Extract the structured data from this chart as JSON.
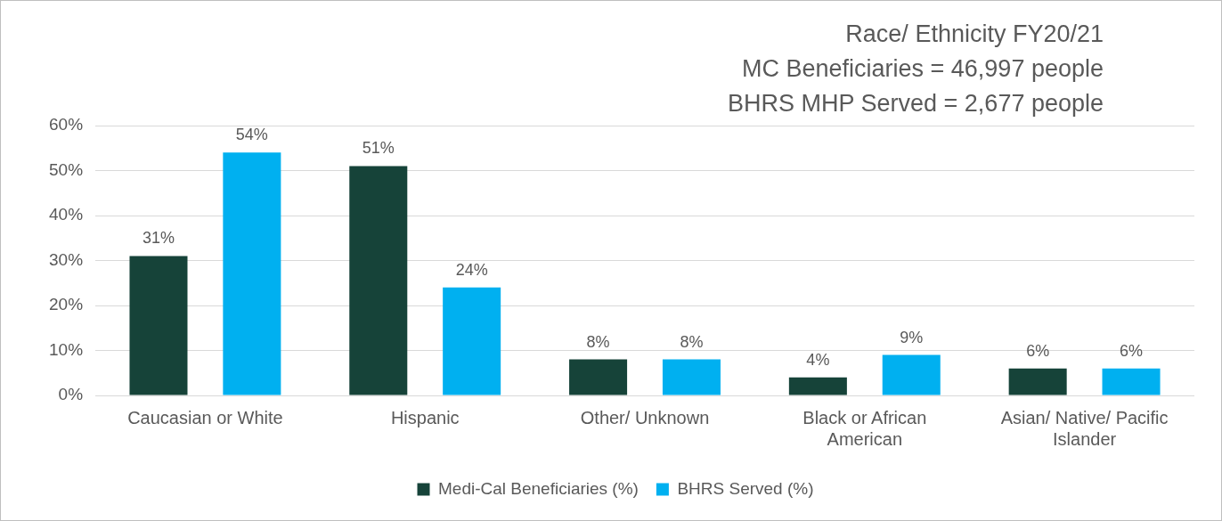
{
  "chart_data": {
    "type": "bar",
    "title": "Race/ Ethnicity FY20/21",
    "subtitle": "MC Beneficiaries = 46,997 people",
    "annotations": [
      "BHRS MHP Served = 2,677 people"
    ],
    "categories": [
      "Caucasian or White",
      "Hispanic",
      "Other/ Unknown",
      "Black or African American",
      "Asian/ Native/ Pacific Islander"
    ],
    "series": [
      {
        "name": "Medi-Cal Beneficiaries (%)",
        "color": "#164339",
        "values": [
          31,
          51,
          8,
          4,
          6
        ],
        "value_labels": [
          "31%",
          "51%",
          "8%",
          "4%",
          "6%"
        ]
      },
      {
        "name": "BHRS Served (%)",
        "color": "#00b0f0",
        "values": [
          54,
          24,
          8,
          9,
          6
        ],
        "value_labels": [
          "54%",
          "24%",
          "8%",
          "9%",
          "6%"
        ]
      }
    ],
    "ylim": [
      0,
      60
    ],
    "yticks": [
      {
        "value": 0,
        "label": "0%"
      },
      {
        "value": 10,
        "label": "10%"
      },
      {
        "value": 20,
        "label": "20%"
      },
      {
        "value": 30,
        "label": "30%"
      },
      {
        "value": 40,
        "label": "40%"
      },
      {
        "value": 50,
        "label": "50%"
      },
      {
        "value": 60,
        "label": "60%"
      }
    ],
    "grid": "y",
    "legend": "bottom"
  }
}
